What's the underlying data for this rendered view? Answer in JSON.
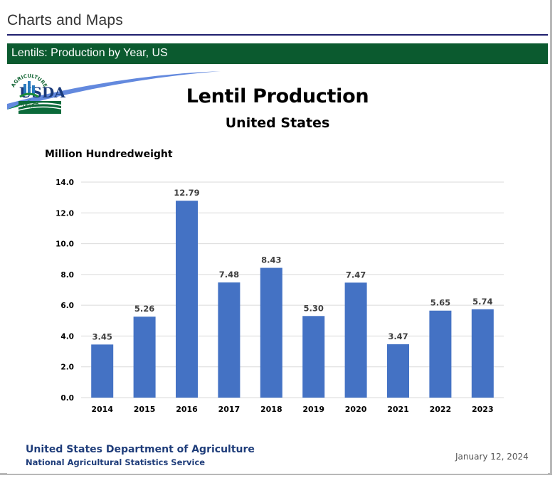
{
  "page": {
    "header": "Charts and Maps",
    "section_title": "Lentils: Production by Year, US"
  },
  "slide": {
    "logo_text": "USDA",
    "badge_top_text": "AGRICULTURE",
    "badge_bottom_text": "COUNTS",
    "footer_org": "United States Department of Agriculture",
    "footer_agency": "National Agricultural Statistics Service",
    "footer_date": "January 12, 2024",
    "colors": {
      "bar": "#4472c4",
      "brand_green": "#0b5a2f",
      "brand_blue": "#1f3d7a"
    }
  },
  "chart_data": {
    "type": "bar",
    "title": "Lentil Production",
    "subtitle": "United States",
    "ylabel": "Million Hundredweight",
    "xlabel": "",
    "categories": [
      "2014",
      "2015",
      "2016",
      "2017",
      "2018",
      "2019",
      "2020",
      "2021",
      "2022",
      "2023"
    ],
    "values": [
      3.45,
      5.26,
      12.79,
      7.48,
      8.43,
      5.3,
      7.47,
      3.47,
      5.65,
      5.74
    ],
    "data_labels": [
      "3.45",
      "5.26",
      "12.79",
      "7.48",
      "8.43",
      "5.30",
      "7.47",
      "3.47",
      "5.65",
      "5.74"
    ],
    "ylim": [
      0,
      14
    ],
    "yticks": [
      "0.0",
      "2.0",
      "4.0",
      "6.0",
      "8.0",
      "10.0",
      "12.0",
      "14.0"
    ],
    "ytick_values": [
      0,
      2,
      4,
      6,
      8,
      10,
      12,
      14
    ],
    "grid": true,
    "legend": "none"
  }
}
